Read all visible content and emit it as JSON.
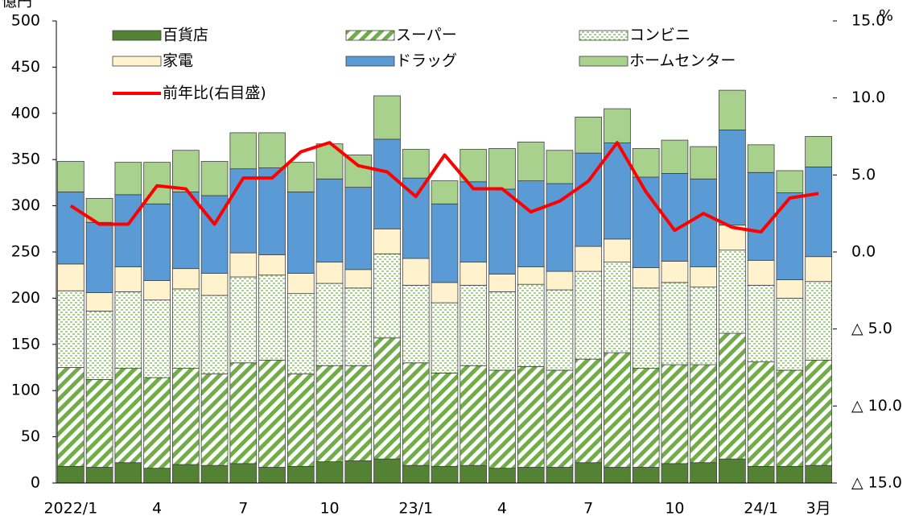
{
  "chart_data": {
    "type": "stacked_bar_line",
    "y_label": "億円",
    "y2_label": "%",
    "categories": [
      "2022/1",
      null,
      null,
      "4",
      null,
      null,
      "7",
      null,
      null,
      "10",
      null,
      null,
      "23/1",
      null,
      null,
      "4",
      null,
      null,
      "7",
      null,
      null,
      "10",
      null,
      null,
      "24/1",
      null,
      "3月"
    ],
    "series": [
      {
        "name": "百貨店",
        "color": "#548235",
        "pattern": "solid",
        "values": [
          18,
          17,
          22,
          16,
          20,
          19,
          21,
          17,
          18,
          23,
          24,
          26,
          19,
          18,
          19,
          16,
          17,
          17,
          22,
          17,
          17,
          21,
          22,
          26,
          18,
          18,
          19
        ]
      },
      {
        "name": "スーパー",
        "color": "#70ad47",
        "pattern": "hatch",
        "values": [
          107,
          95,
          102,
          98,
          104,
          99,
          109,
          116,
          100,
          104,
          103,
          131,
          111,
          101,
          108,
          106,
          109,
          105,
          112,
          124,
          107,
          107,
          106,
          136,
          113,
          104,
          114
        ]
      },
      {
        "name": "コンビニ",
        "color": "#a9d18e",
        "pattern": "dots",
        "values": [
          83,
          74,
          83,
          84,
          86,
          85,
          93,
          92,
          87,
          89,
          84,
          91,
          84,
          76,
          87,
          85,
          89,
          87,
          95,
          98,
          87,
          89,
          84,
          90,
          83,
          78,
          85
        ]
      },
      {
        "name": "家電",
        "color": "#fff2cc",
        "pattern": "solid",
        "values": [
          29,
          20,
          27,
          21,
          22,
          24,
          26,
          22,
          22,
          23,
          20,
          27,
          29,
          22,
          25,
          19,
          19,
          20,
          27,
          25,
          22,
          23,
          22,
          27,
          27,
          20,
          27
        ]
      },
      {
        "name": "ドラッグ",
        "color": "#5b9bd5",
        "pattern": "solid",
        "values": [
          78,
          76,
          78,
          83,
          83,
          84,
          91,
          94,
          88,
          90,
          89,
          97,
          87,
          85,
          87,
          92,
          93,
          95,
          101,
          104,
          98,
          95,
          95,
          103,
          95,
          94,
          97
        ]
      },
      {
        "name": "ホームセンター",
        "color": "#a9d18e",
        "pattern": "solid",
        "values": [
          33,
          26,
          35,
          45,
          45,
          37,
          39,
          38,
          32,
          38,
          35,
          47,
          31,
          25,
          35,
          44,
          42,
          36,
          39,
          37,
          31,
          36,
          35,
          43,
          30,
          24,
          33
        ]
      },
      {
        "name": "前年比(右目盛)",
        "color": "#ff0000",
        "type": "line",
        "axis": "y2",
        "values": [
          3.0,
          1.8,
          1.8,
          4.3,
          4.1,
          1.8,
          4.8,
          4.8,
          6.5,
          7.1,
          5.6,
          5.2,
          3.6,
          6.3,
          4.1,
          4.1,
          2.6,
          3.3,
          4.6,
          7.1,
          3.9,
          1.4,
          2.5,
          1.6,
          1.3,
          3.5,
          3.8
        ]
      }
    ],
    "ylim": [
      0,
      500
    ],
    "yticks": [
      0,
      50,
      100,
      150,
      200,
      250,
      300,
      350,
      400,
      450,
      500
    ],
    "y2lim": [
      -15,
      15
    ],
    "y2ticks": [
      {
        "value": -15,
        "label": "△ 15.0"
      },
      {
        "value": -10,
        "label": "△ 10.0"
      },
      {
        "value": -5,
        "label": "△ 5.0"
      },
      {
        "value": 0,
        "label": "0.0"
      },
      {
        "value": 5,
        "label": "5.0"
      },
      {
        "value": 10,
        "label": "10.0"
      },
      {
        "value": 15,
        "label": "15.0"
      }
    ],
    "legend": "top"
  }
}
